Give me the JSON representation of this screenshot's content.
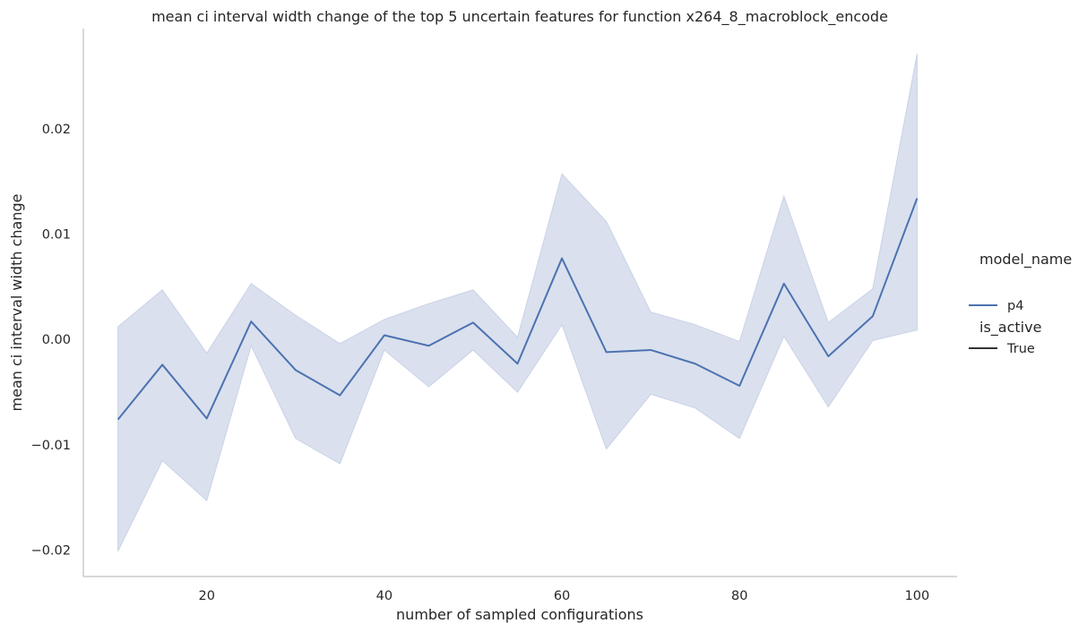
{
  "chart_data": {
    "type": "line",
    "title": "mean ci interval width change of the top 5 uncertain features for function x264_8_macroblock_encode",
    "xlabel": "number of sampled configurations",
    "ylabel": "mean ci interval width change",
    "xlim": [
      6.1,
      104.5
    ],
    "ylim": [
      -0.0225,
      0.0295
    ],
    "xticks": [
      20,
      40,
      60,
      80,
      100
    ],
    "xtick_labels": [
      "20",
      "40",
      "60",
      "80",
      "100"
    ],
    "yticks": [
      -0.02,
      -0.01,
      0.0,
      0.01,
      0.02
    ],
    "ytick_labels": [
      "−0.02",
      "−0.01",
      "0.00",
      "0.01",
      "0.02"
    ],
    "grid": false,
    "legend_placement": "right",
    "legend": {
      "hue_title": "model_name",
      "hue_entries": [
        {
          "label": "p4",
          "color": "#4c72b0"
        }
      ],
      "style_title": "is_active",
      "style_entries": [
        {
          "label": "True",
          "color": "#333333"
        }
      ]
    },
    "series": [
      {
        "name": "p4",
        "color": "#4c72b0",
        "band_color": "#dae0ee",
        "x": [
          10,
          15,
          20,
          25,
          30,
          35,
          40,
          45,
          50,
          55,
          60,
          65,
          70,
          75,
          80,
          85,
          90,
          95,
          100
        ],
        "y": [
          -0.0076,
          -0.0024,
          -0.0075,
          0.0017,
          -0.0029,
          -0.0053,
          0.0004,
          -0.0006,
          0.0016,
          -0.0023,
          0.0077,
          -0.0012,
          -0.001,
          -0.0023,
          -0.0044,
          0.0053,
          -0.0016,
          0.0022,
          0.0134
        ],
        "ci_low": [
          -0.0201,
          -0.0115,
          -0.0153,
          -0.0006,
          -0.0094,
          -0.0118,
          -0.001,
          -0.0045,
          -0.001,
          -0.005,
          0.0014,
          -0.0104,
          -0.0052,
          -0.0065,
          -0.0094,
          0.0003,
          -0.0064,
          -0.0001,
          0.0009
        ],
        "ci_high": [
          0.0012,
          0.0047,
          -0.0013,
          0.0053,
          0.0023,
          -0.0004,
          0.0019,
          0.0034,
          0.0047,
          0.0002,
          0.0157,
          0.0112,
          0.0026,
          0.0014,
          -0.0002,
          0.0136,
          0.0016,
          0.0048,
          0.0271
        ]
      }
    ]
  }
}
